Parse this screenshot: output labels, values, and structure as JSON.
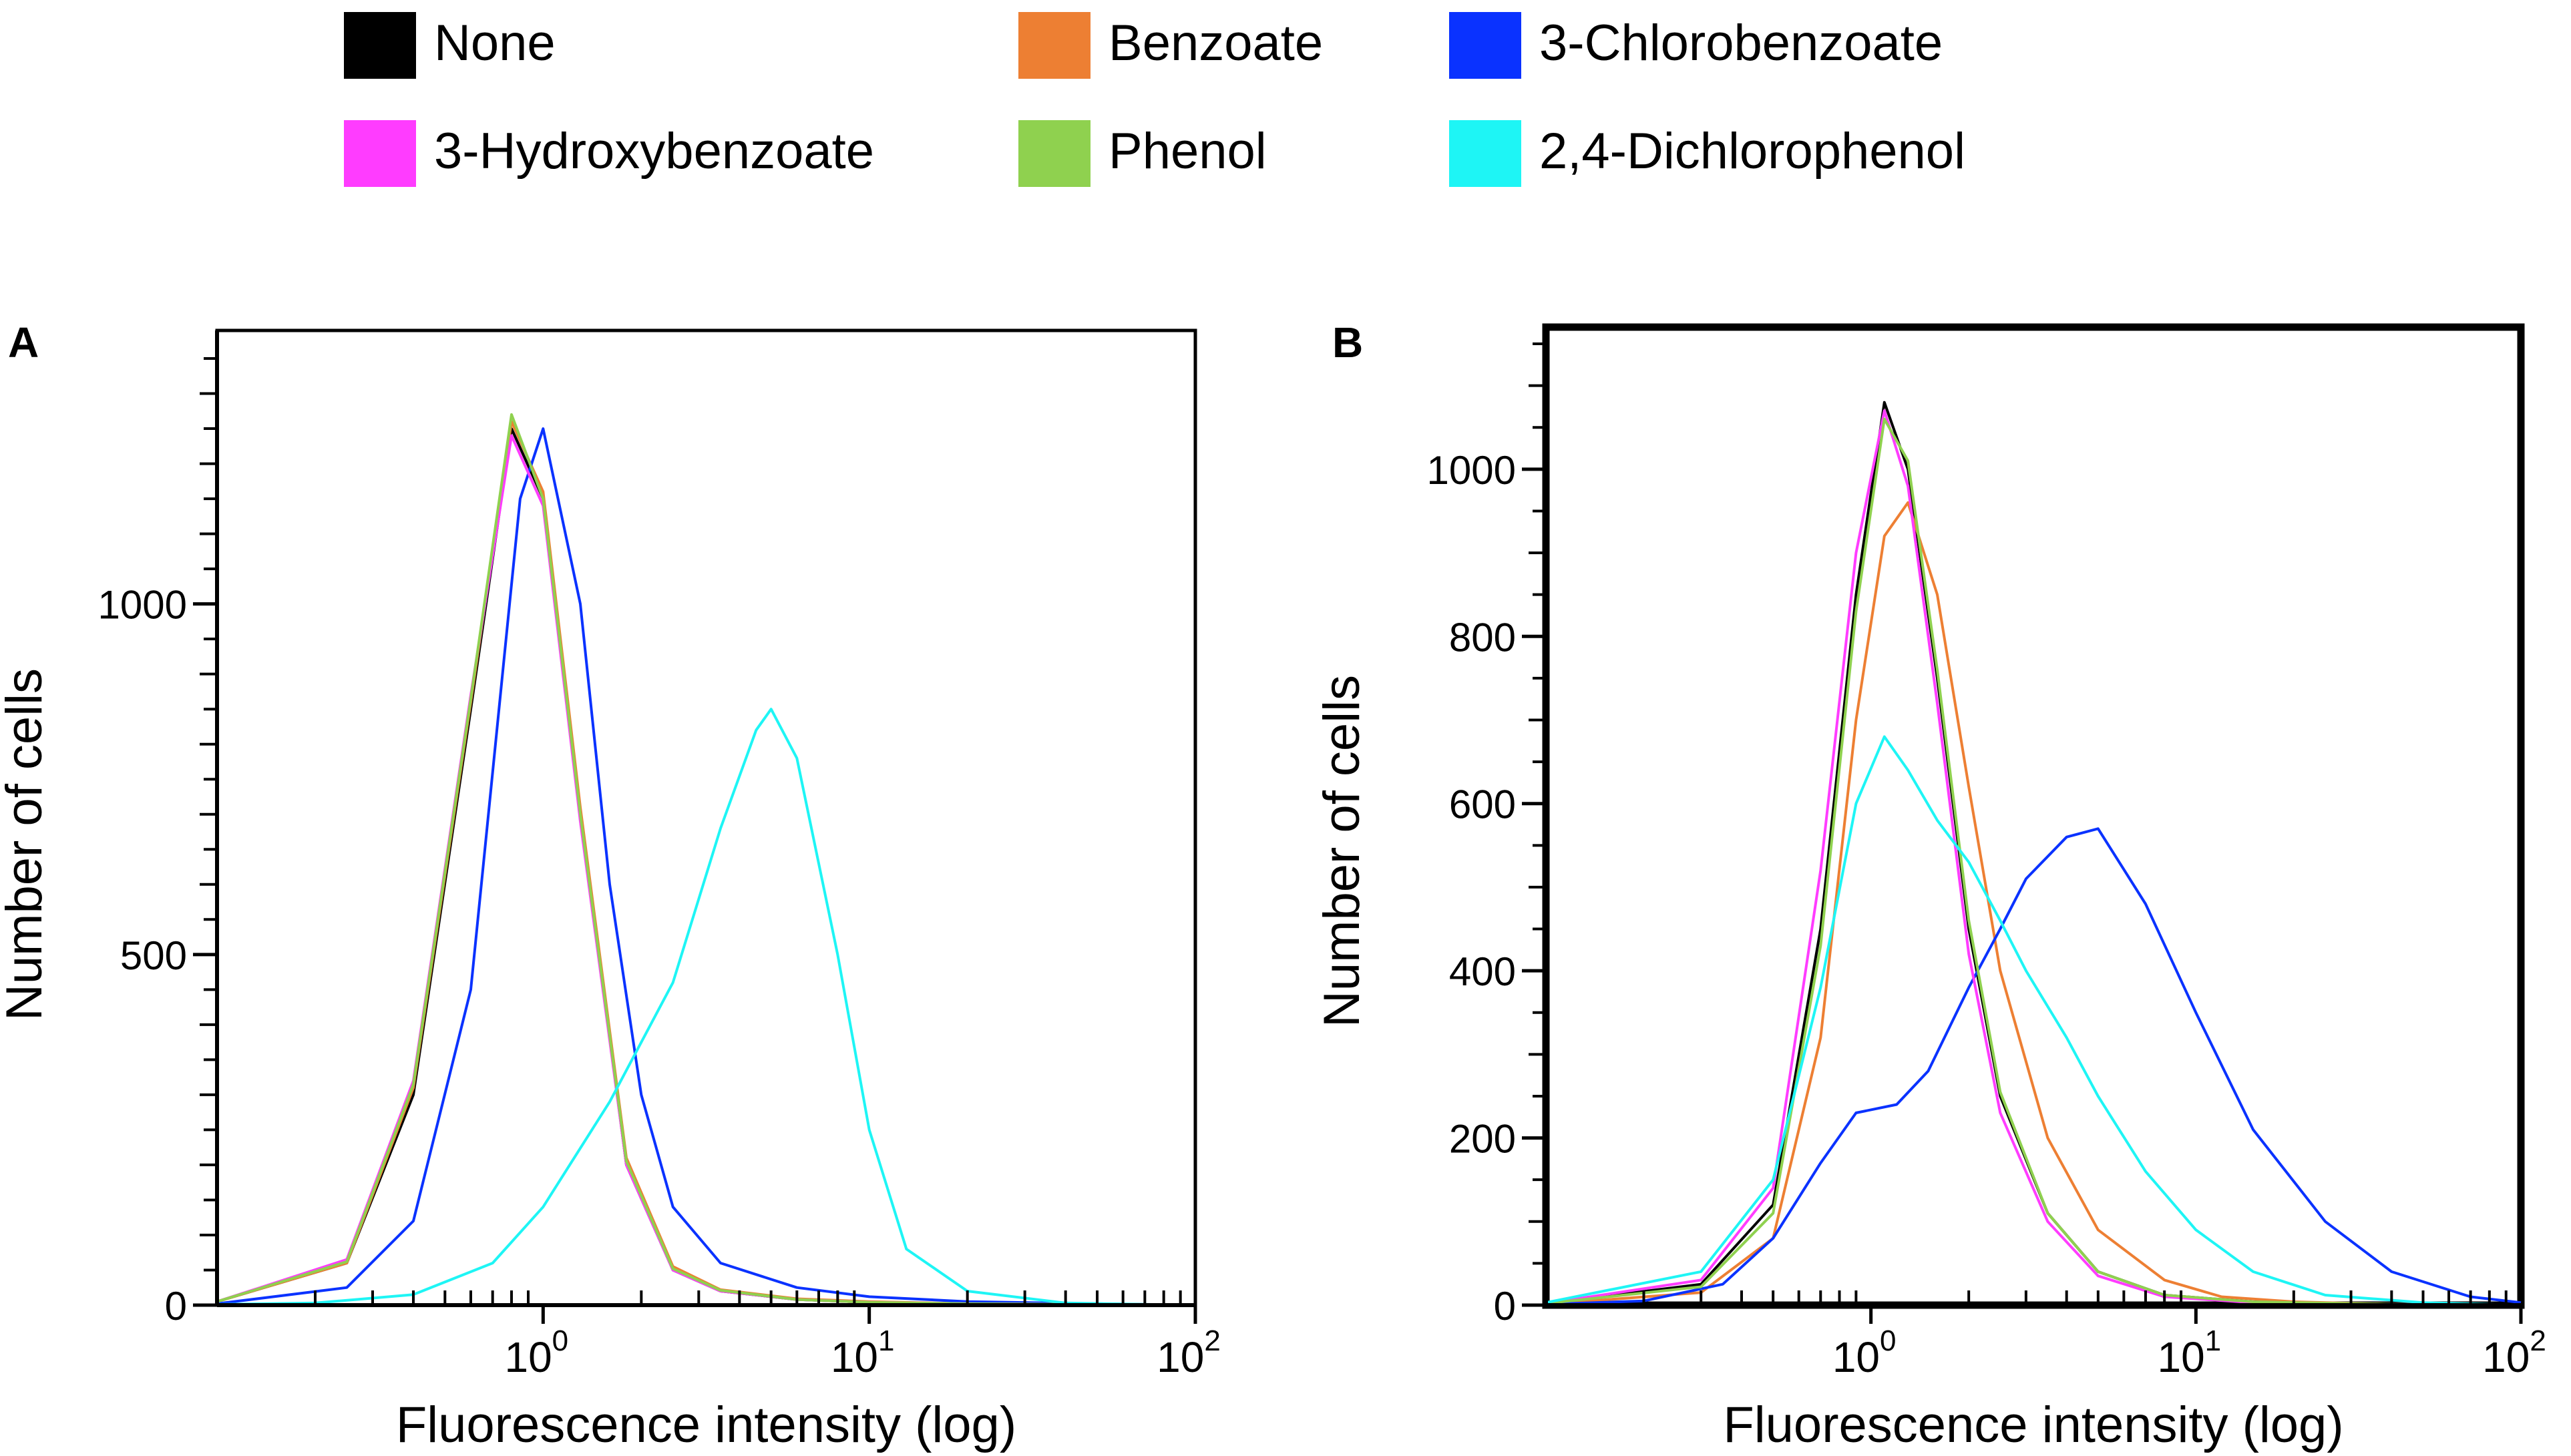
{
  "legend": {
    "items": [
      {
        "label": "None",
        "color": "#000000"
      },
      {
        "label": "Benzoate",
        "color": "#ED7F33"
      },
      {
        "label": "3-Chlorobenzoate",
        "color": "#0A32FF"
      },
      {
        "label": "3-Hydroxybenzoate",
        "color": "#FF3CFF"
      },
      {
        "label": "Phenol",
        "color": "#8FD14F"
      },
      {
        "label": "2,4-Dichlorophenol",
        "color": "#1EF5F5"
      }
    ]
  },
  "chart_data": [
    {
      "panel": "A",
      "type": "line",
      "xscale": "log",
      "xlabel": "Fluorescence intensity (log)",
      "ylabel": "Number of cells",
      "xlim": [
        0.1,
        100
      ],
      "ylim": [
        0,
        1390
      ],
      "x_ticks": [
        {
          "value": 1,
          "label": "10",
          "sup": "0"
        },
        {
          "value": 10,
          "label": "10",
          "sup": "1"
        },
        {
          "value": 100,
          "label": "10",
          "sup": "2"
        }
      ],
      "y_ticks": [
        0,
        500,
        1000
      ],
      "series": [
        {
          "name": "None",
          "color": "#000000",
          "x": [
            0.1,
            0.25,
            0.4,
            0.6,
            0.8,
            1.0,
            1.3,
            1.8,
            2.5,
            3.5,
            6,
            10,
            20,
            50,
            100
          ],
          "y": [
            5,
            60,
            300,
            850,
            1250,
            1150,
            700,
            200,
            50,
            20,
            8,
            4,
            2,
            1,
            0
          ]
        },
        {
          "name": "Benzoate",
          "color": "#ED7F33",
          "x": [
            0.1,
            0.25,
            0.4,
            0.6,
            0.8,
            1.0,
            1.3,
            1.8,
            2.5,
            3.5,
            6,
            10,
            20,
            50,
            100
          ],
          "y": [
            5,
            60,
            310,
            860,
            1260,
            1160,
            710,
            210,
            55,
            22,
            9,
            5,
            2,
            1,
            0
          ]
        },
        {
          "name": "3-Chlorobenzoate",
          "color": "#0A32FF",
          "x": [
            0.1,
            0.25,
            0.4,
            0.6,
            0.85,
            1.0,
            1.3,
            1.6,
            2.0,
            2.5,
            3.5,
            6,
            10,
            20,
            50,
            100
          ],
          "y": [
            2,
            25,
            120,
            450,
            1150,
            1250,
            1000,
            600,
            300,
            140,
            60,
            25,
            12,
            5,
            2,
            0
          ]
        },
        {
          "name": "3-Hydroxybenzoate",
          "color": "#FF3CFF",
          "x": [
            0.1,
            0.25,
            0.4,
            0.6,
            0.8,
            1.0,
            1.3,
            1.8,
            2.5,
            3.5,
            6,
            10,
            20,
            50,
            100
          ],
          "y": [
            5,
            65,
            320,
            870,
            1240,
            1140,
            690,
            200,
            50,
            20,
            8,
            4,
            2,
            1,
            0
          ]
        },
        {
          "name": "Phenol",
          "color": "#8FD14F",
          "x": [
            0.1,
            0.25,
            0.4,
            0.6,
            0.8,
            1.0,
            1.3,
            1.8,
            2.5,
            3.5,
            6,
            10,
            20,
            50,
            100
          ],
          "y": [
            5,
            62,
            315,
            865,
            1270,
            1150,
            700,
            205,
            52,
            21,
            8,
            4,
            2,
            1,
            0
          ]
        },
        {
          "name": "2,4-Dichlorophenol",
          "color": "#1EF5F5",
          "x": [
            0.1,
            0.2,
            0.4,
            0.7,
            1.0,
            1.6,
            2.5,
            3.5,
            4.5,
            5.0,
            6.0,
            8.0,
            10,
            13,
            20,
            40,
            100
          ],
          "y": [
            1,
            3,
            15,
            60,
            140,
            290,
            460,
            680,
            820,
            850,
            780,
            500,
            250,
            80,
            20,
            3,
            0
          ]
        }
      ]
    },
    {
      "panel": "B",
      "type": "line",
      "xscale": "log",
      "xlabel": "Fluorescence intensity (log)",
      "ylabel": "Number of cells",
      "xlim": [
        0.1,
        100
      ],
      "ylim": [
        0,
        1170
      ],
      "x_ticks": [
        {
          "value": 1,
          "label": "10",
          "sup": "0"
        },
        {
          "value": 10,
          "label": "10",
          "sup": "1"
        },
        {
          "value": 100,
          "label": "10",
          "sup": "2"
        }
      ],
      "y_ticks": [
        0,
        200,
        400,
        600,
        800,
        1000
      ],
      "series": [
        {
          "name": "None",
          "color": "#000000",
          "x": [
            0.1,
            0.3,
            0.5,
            0.7,
            0.9,
            1.1,
            1.3,
            1.6,
            2.0,
            2.5,
            3.5,
            5,
            8,
            15,
            40,
            100
          ],
          "y": [
            2,
            25,
            120,
            450,
            850,
            1080,
            1000,
            750,
            450,
            250,
            110,
            40,
            12,
            4,
            1,
            0
          ]
        },
        {
          "name": "Benzoate",
          "color": "#ED7F33",
          "x": [
            0.1,
            0.3,
            0.5,
            0.7,
            0.9,
            1.1,
            1.3,
            1.6,
            2.0,
            2.5,
            3.5,
            5,
            8,
            12,
            20,
            40,
            100
          ],
          "y": [
            1,
            15,
            80,
            320,
            700,
            920,
            960,
            850,
            620,
            400,
            200,
            90,
            30,
            10,
            4,
            1,
            0
          ]
        },
        {
          "name": "3-Chlorobenzoate",
          "color": "#0A32FF",
          "x": [
            0.1,
            0.2,
            0.35,
            0.5,
            0.7,
            0.9,
            1.2,
            1.5,
            2.0,
            2.5,
            3.0,
            4.0,
            5.0,
            7.0,
            10,
            15,
            25,
            40,
            70,
            100
          ],
          "y": [
            1,
            5,
            25,
            80,
            170,
            230,
            240,
            280,
            380,
            450,
            510,
            560,
            570,
            480,
            350,
            210,
            100,
            40,
            10,
            3
          ]
        },
        {
          "name": "3-Hydroxybenzoate",
          "color": "#FF3CFF",
          "x": [
            0.1,
            0.3,
            0.5,
            0.7,
            0.9,
            1.1,
            1.3,
            1.6,
            2.0,
            2.5,
            3.5,
            5,
            8,
            15,
            40,
            100
          ],
          "y": [
            2,
            30,
            140,
            520,
            900,
            1070,
            980,
            720,
            420,
            230,
            100,
            35,
            10,
            3,
            1,
            0
          ]
        },
        {
          "name": "Phenol",
          "color": "#8FD14F",
          "x": [
            0.1,
            0.3,
            0.5,
            0.7,
            0.9,
            1.1,
            1.3,
            1.6,
            2.0,
            2.5,
            3.5,
            5,
            8,
            15,
            40,
            100
          ],
          "y": [
            2,
            22,
            110,
            430,
            830,
            1060,
            1010,
            760,
            460,
            255,
            110,
            40,
            12,
            4,
            1,
            0
          ]
        },
        {
          "name": "2,4-Dichlorophenol",
          "color": "#1EF5F5",
          "x": [
            0.1,
            0.3,
            0.5,
            0.7,
            0.9,
            1.1,
            1.3,
            1.6,
            2.0,
            2.5,
            3.0,
            4.0,
            5.0,
            7.0,
            10,
            15,
            25,
            50,
            100
          ],
          "y": [
            3,
            40,
            150,
            380,
            600,
            680,
            640,
            580,
            530,
            460,
            400,
            320,
            250,
            160,
            90,
            40,
            12,
            3,
            0
          ]
        }
      ]
    }
  ]
}
